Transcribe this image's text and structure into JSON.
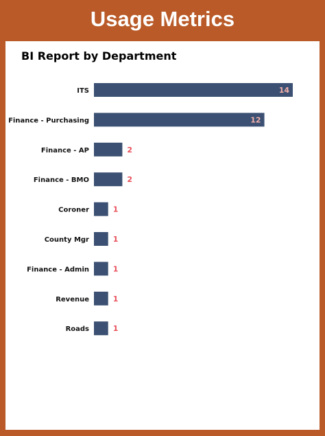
{
  "header": {
    "title": "Usage Metrics"
  },
  "colors": {
    "frame": "#b95a28",
    "bar": "#3b5072",
    "value_inside": "#f3b1a9",
    "value_outside": "#e8505b"
  },
  "chart_data": {
    "type": "bar",
    "orientation": "horizontal",
    "title": "BI Report by Department",
    "xlabel": "",
    "ylabel": "",
    "categories": [
      "ITS",
      "Finance - Purchasing",
      "Finance - AP",
      "Finance - BMO",
      "Coroner",
      "County Mgr",
      "Finance - Admin",
      "Revenue",
      "Roads"
    ],
    "values": [
      14,
      12,
      2,
      2,
      1,
      1,
      1,
      1,
      1
    ],
    "grid": false,
    "legend": "none"
  }
}
